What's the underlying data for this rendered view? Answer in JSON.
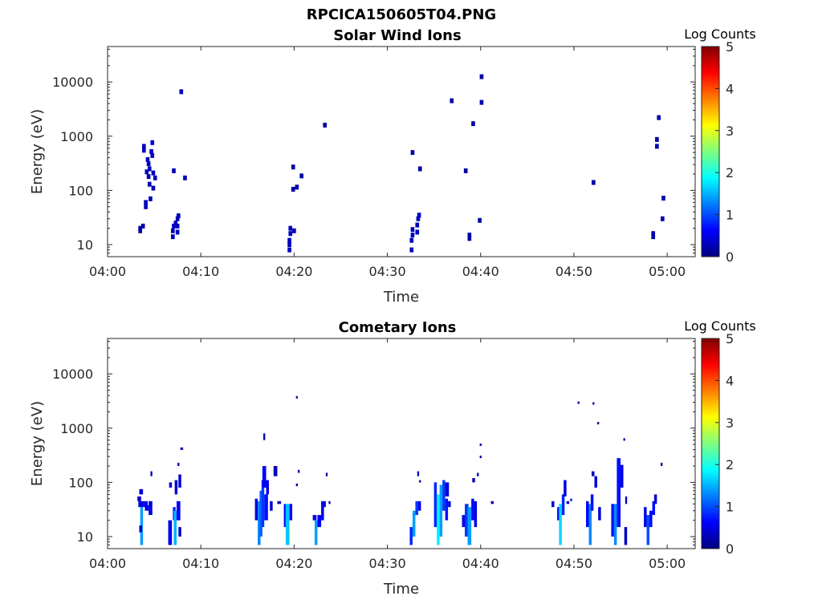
{
  "title": "RPCICA150605T04.PNG",
  "colorbar_colors": [
    "#00007f",
    "#0000ff",
    "#007fff",
    "#00ffff",
    "#7fff7f",
    "#ffff00",
    "#ff7f00",
    "#ff0000",
    "#7f0000"
  ],
  "chart_data": [
    {
      "type": "heatmap",
      "title": "Solar Wind Ions",
      "xlabel": "Time",
      "ylabel": "Energy (eV)",
      "x_ticks": [
        "04:00",
        "04:10",
        "04:20",
        "04:30",
        "04:40",
        "04:50",
        "05:00"
      ],
      "x_range_min": [
        0,
        63
      ],
      "y_scale": "log",
      "y_ticks": [
        10,
        100,
        1000,
        10000
      ],
      "ylim": [
        6,
        45000
      ],
      "colorbar_label": "Log Counts",
      "colorbar_ticks": [
        0,
        1,
        2,
        3,
        4,
        5
      ],
      "clim": [
        0,
        5
      ],
      "cells": [
        [
          3.5,
          20,
          0.2
        ],
        [
          3.5,
          18,
          0.2
        ],
        [
          3.8,
          22,
          0.2
        ],
        [
          3.9,
          550,
          0.3
        ],
        [
          3.9,
          650,
          0.3
        ],
        [
          4.1,
          50,
          0.3
        ],
        [
          4.1,
          60,
          0.3
        ],
        [
          4.2,
          220,
          0.3
        ],
        [
          4.3,
          370,
          0.3
        ],
        [
          4.4,
          310,
          0.3
        ],
        [
          4.5,
          250,
          0.3
        ],
        [
          4.4,
          180,
          0.3
        ],
        [
          4.5,
          130,
          0.3
        ],
        [
          4.6,
          70,
          0.3
        ],
        [
          4.7,
          520,
          0.3
        ],
        [
          4.8,
          440,
          0.3
        ],
        [
          4.8,
          760,
          0.4
        ],
        [
          4.9,
          210,
          0.3
        ],
        [
          4.9,
          110,
          0.3
        ],
        [
          5.1,
          170,
          0.3
        ],
        [
          7.0,
          14,
          0.3
        ],
        [
          7.0,
          18,
          0.3
        ],
        [
          7.1,
          22,
          0.3
        ],
        [
          7.3,
          25,
          0.3
        ],
        [
          7.5,
          22,
          0.3
        ],
        [
          7.5,
          30,
          0.3
        ],
        [
          7.5,
          17,
          0.3
        ],
        [
          7.6,
          34,
          0.3
        ],
        [
          7.1,
          230,
          0.3
        ],
        [
          7.9,
          6600,
          0.3
        ],
        [
          8.3,
          170,
          0.3
        ],
        [
          19.5,
          8,
          0.3
        ],
        [
          19.5,
          10,
          0.3
        ],
        [
          19.5,
          12,
          0.3
        ],
        [
          19.6,
          16,
          0.3
        ],
        [
          19.6,
          20,
          0.3
        ],
        [
          20.0,
          18,
          0.3
        ],
        [
          19.9,
          270,
          0.2
        ],
        [
          19.9,
          105,
          0.2
        ],
        [
          20.3,
          115,
          0.2
        ],
        [
          20.8,
          185,
          0.2
        ],
        [
          23.3,
          1600,
          0.2
        ],
        [
          32.6,
          8,
          0.3
        ],
        [
          32.6,
          12,
          0.3
        ],
        [
          32.7,
          15,
          0.3
        ],
        [
          32.7,
          19,
          0.3
        ],
        [
          33.2,
          17,
          0.3
        ],
        [
          33.2,
          23,
          0.3
        ],
        [
          33.3,
          30,
          0.3
        ],
        [
          33.4,
          35,
          0.3
        ],
        [
          32.7,
          500,
          0.2
        ],
        [
          33.5,
          250,
          0.2
        ],
        [
          36.9,
          4500,
          0.2
        ],
        [
          38.4,
          230,
          0.2
        ],
        [
          38.8,
          13,
          0.2
        ],
        [
          38.8,
          15,
          0.2
        ],
        [
          39.2,
          1700,
          0.2
        ],
        [
          39.9,
          28,
          0.2
        ],
        [
          40.1,
          4200,
          0.2
        ],
        [
          40.1,
          12500,
          0.2
        ],
        [
          52.1,
          140,
          0.2
        ],
        [
          58.5,
          14,
          0.2
        ],
        [
          58.5,
          16,
          0.2
        ],
        [
          58.9,
          870,
          0.2
        ],
        [
          58.9,
          650,
          0.2
        ],
        [
          59.1,
          2200,
          0.2
        ],
        [
          59.5,
          30,
          0.2
        ],
        [
          59.6,
          72,
          0.2
        ]
      ]
    },
    {
      "type": "heatmap",
      "title": "Cometary Ions",
      "xlabel": "Time",
      "ylabel": "Energy (eV)",
      "x_ticks": [
        "04:00",
        "04:10",
        "04:20",
        "04:30",
        "04:40",
        "04:50",
        "05:00"
      ],
      "x_range_min": [
        0,
        63
      ],
      "y_scale": "log",
      "y_ticks": [
        10,
        100,
        1000,
        10000
      ],
      "ylim": [
        6,
        45000
      ],
      "colorbar_label": "Log Counts",
      "colorbar_ticks": [
        0,
        1,
        2,
        3,
        4,
        5
      ],
      "clim": [
        0,
        5
      ],
      "columns": [
        [
          3.2,
          3.6,
          45,
          55,
          0.4
        ],
        [
          3.4,
          3.8,
          60,
          75,
          0.4
        ],
        [
          3.3,
          3.9,
          35,
          45,
          0.5
        ],
        [
          3.5,
          3.8,
          7,
          35,
          1.4
        ],
        [
          3.4,
          3.7,
          12,
          16,
          0.3
        ],
        [
          3.9,
          4.3,
          35,
          45,
          0.5
        ],
        [
          4.0,
          4.4,
          30,
          38,
          0.5
        ],
        [
          4.4,
          4.8,
          25,
          45,
          0.5
        ],
        [
          4.6,
          4.8,
          130,
          160,
          0.3
        ],
        [
          6.5,
          6.9,
          7,
          20,
          0.5
        ],
        [
          6.6,
          6.9,
          80,
          100,
          0.4
        ],
        [
          7.0,
          7.3,
          20,
          35,
          0.8
        ],
        [
          7.1,
          7.4,
          7,
          30,
          1.5
        ],
        [
          7.2,
          7.5,
          60,
          110,
          0.4
        ],
        [
          7.4,
          7.8,
          20,
          45,
          0.6
        ],
        [
          7.6,
          7.9,
          80,
          140,
          0.4
        ],
        [
          7.6,
          7.9,
          10,
          15,
          0.4
        ],
        [
          7.8,
          8.1,
          420,
          440,
          0.2
        ],
        [
          7.5,
          7.7,
          200,
          230,
          0.3
        ],
        [
          15.8,
          16.1,
          20,
          50,
          0.5
        ],
        [
          16.1,
          16.4,
          7,
          45,
          1.3
        ],
        [
          16.3,
          16.6,
          10,
          70,
          1.1
        ],
        [
          16.5,
          16.8,
          15,
          110,
          0.9
        ],
        [
          16.6,
          17.0,
          80,
          200,
          0.6
        ],
        [
          16.8,
          17.2,
          20,
          60,
          0.7
        ],
        [
          17.0,
          17.3,
          60,
          110,
          0.5
        ],
        [
          16.7,
          16.9,
          600,
          800,
          0.3
        ],
        [
          17.4,
          17.7,
          30,
          45,
          0.4
        ],
        [
          17.8,
          18.2,
          130,
          200,
          0.3
        ],
        [
          18.2,
          18.6,
          40,
          45,
          0.3
        ],
        [
          18.9,
          19.1,
          15,
          40,
          0.7
        ],
        [
          19.1,
          19.5,
          7,
          40,
          1.6
        ],
        [
          19.5,
          19.8,
          20,
          40,
          0.6
        ],
        [
          20.2,
          20.4,
          3800,
          3900,
          0.2
        ],
        [
          20.4,
          20.6,
          150,
          170,
          0.2
        ],
        [
          20.2,
          20.4,
          85,
          95,
          0.2
        ],
        [
          22.0,
          22.4,
          20,
          25,
          0.5
        ],
        [
          22.2,
          22.5,
          7,
          20,
          1.4
        ],
        [
          22.5,
          22.9,
          15,
          25,
          0.6
        ],
        [
          22.9,
          23.2,
          20,
          45,
          0.5
        ],
        [
          23.2,
          23.4,
          35,
          45,
          0.4
        ],
        [
          23.4,
          23.6,
          130,
          150,
          0.2
        ],
        [
          23.7,
          23.9,
          40,
          45,
          0.3
        ],
        [
          32.4,
          32.7,
          7,
          15,
          0.8
        ],
        [
          32.7,
          33.0,
          10,
          30,
          1.4
        ],
        [
          33.0,
          33.3,
          25,
          45,
          0.9
        ],
        [
          33.3,
          33.6,
          30,
          45,
          0.6
        ],
        [
          33.2,
          33.4,
          130,
          160,
          0.3
        ],
        [
          33.4,
          33.6,
          100,
          110,
          0.3
        ],
        [
          35.0,
          35.3,
          15,
          100,
          0.8
        ],
        [
          35.3,
          35.6,
          7,
          60,
          1.8
        ],
        [
          35.6,
          35.9,
          10,
          90,
          1.4
        ],
        [
          35.9,
          36.2,
          30,
          110,
          0.9
        ],
        [
          36.2,
          36.5,
          20,
          50,
          0.7
        ],
        [
          36.5,
          36.8,
          35,
          45,
          0.4
        ],
        [
          36.2,
          36.6,
          55,
          100,
          0.4
        ],
        [
          38.0,
          38.3,
          15,
          25,
          0.5
        ],
        [
          38.3,
          38.7,
          10,
          40,
          0.9
        ],
        [
          38.6,
          39.0,
          7,
          35,
          1.4
        ],
        [
          39.0,
          39.3,
          20,
          50,
          0.6
        ],
        [
          39.3,
          39.6,
          15,
          45,
          0.5
        ],
        [
          39.1,
          39.4,
          100,
          120,
          0.3
        ],
        [
          39.6,
          39.8,
          130,
          150,
          0.2
        ],
        [
          39.9,
          40.1,
          290,
          310,
          0.2
        ],
        [
          39.9,
          40.1,
          480,
          520,
          0.2
        ],
        [
          41.1,
          41.4,
          40,
          45,
          0.3
        ],
        [
          47.6,
          47.9,
          35,
          45,
          0.4
        ],
        [
          48.2,
          48.5,
          20,
          35,
          0.7
        ],
        [
          48.4,
          48.7,
          7,
          40,
          1.7
        ],
        [
          48.7,
          49.0,
          25,
          60,
          0.8
        ],
        [
          48.9,
          49.2,
          55,
          110,
          0.5
        ],
        [
          49.2,
          49.5,
          40,
          45,
          0.4
        ],
        [
          49.6,
          49.8,
          45,
          50,
          0.3
        ],
        [
          50.4,
          50.6,
          3000,
          3100,
          0.2
        ],
        [
          51.3,
          51.6,
          15,
          45,
          0.6
        ],
        [
          51.6,
          51.9,
          7,
          40,
          1.3
        ],
        [
          51.8,
          52.1,
          30,
          60,
          0.7
        ],
        [
          51.9,
          52.2,
          130,
          160,
          0.3
        ],
        [
          52.0,
          52.2,
          2800,
          3000,
          0.2
        ],
        [
          52.2,
          52.5,
          80,
          130,
          0.4
        ],
        [
          52.5,
          52.7,
          1200,
          1300,
          0.2
        ],
        [
          52.6,
          52.9,
          20,
          35,
          0.4
        ],
        [
          54.0,
          54.3,
          10,
          40,
          0.7
        ],
        [
          54.3,
          54.6,
          7,
          40,
          1.3
        ],
        [
          54.6,
          55.0,
          15,
          280,
          0.7
        ],
        [
          55.0,
          55.3,
          80,
          210,
          0.5
        ],
        [
          55.3,
          55.5,
          600,
          650,
          0.2
        ],
        [
          55.4,
          55.7,
          7,
          15,
          0.3
        ],
        [
          55.5,
          55.7,
          40,
          55,
          0.3
        ],
        [
          57.5,
          57.8,
          15,
          35,
          0.5
        ],
        [
          57.8,
          58.1,
          7,
          25,
          1.0
        ],
        [
          58.1,
          58.4,
          15,
          30,
          0.6
        ],
        [
          58.4,
          58.7,
          25,
          45,
          0.7
        ],
        [
          58.6,
          58.9,
          40,
          60,
          0.4
        ],
        [
          59.3,
          59.5,
          200,
          230,
          0.2
        ]
      ]
    }
  ]
}
